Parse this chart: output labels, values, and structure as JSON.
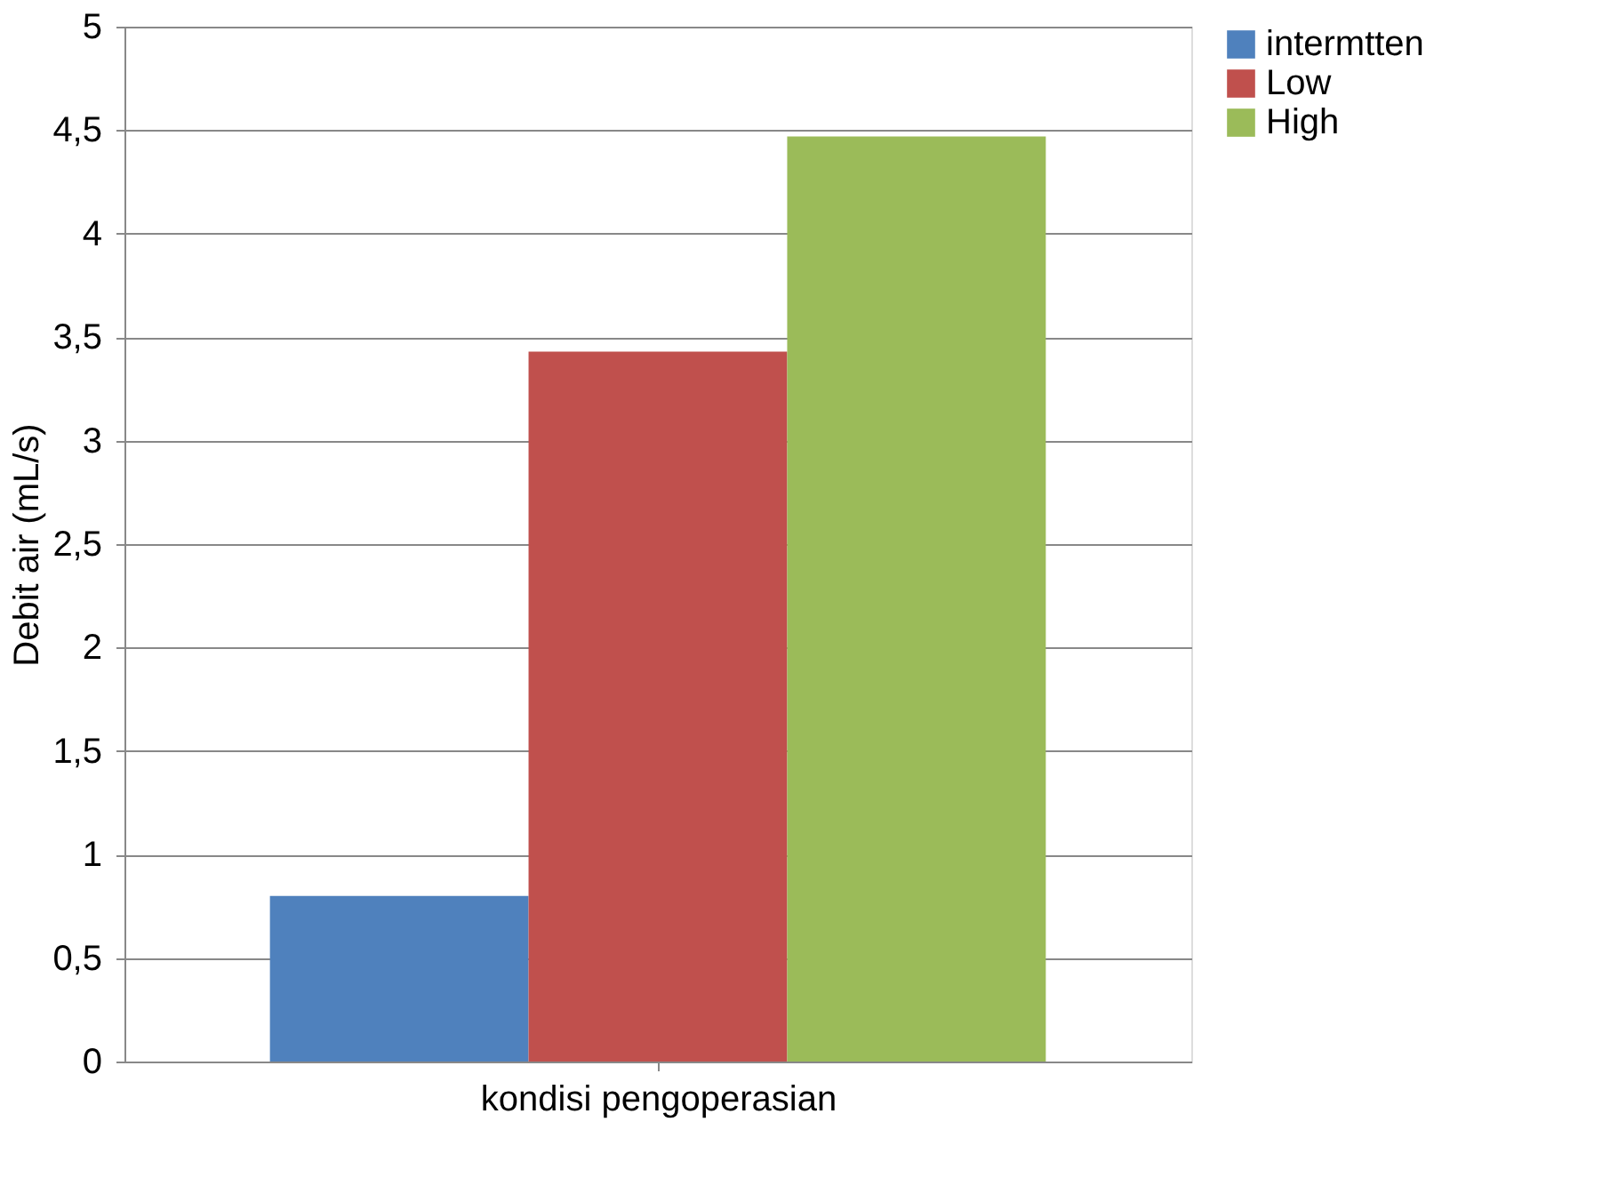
{
  "chart_data": {
    "type": "bar",
    "xlabel": "kondisi pengoperasian",
    "ylabel": "Debit air (mL/s)",
    "categories": [
      null
    ],
    "series": [
      {
        "name": "intermtten",
        "color": "#4f81bd",
        "values": [
          0.8
        ]
      },
      {
        "name": "Low",
        "color": "#c0504d",
        "values": [
          3.43
        ]
      },
      {
        "name": "High",
        "color": "#9bbb59",
        "values": [
          4.47
        ]
      }
    ],
    "ylim": [
      0,
      5
    ],
    "yticks": [
      0,
      {
        "value": 0.5,
        "label": "0,5"
      },
      1,
      {
        "value": 1.5,
        "label": "1,5"
      },
      2,
      {
        "value": 2.5,
        "label": "2,5"
      },
      3,
      {
        "value": 3.5,
        "label": "3,5"
      },
      4,
      {
        "value": 4.5,
        "label": "4,5"
      },
      5
    ],
    "grid": "y",
    "legend": "right"
  }
}
